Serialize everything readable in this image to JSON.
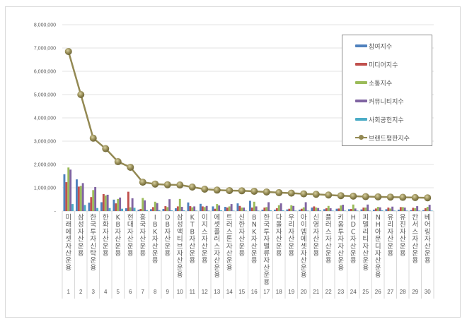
{
  "chart_data": {
    "type": "bar",
    "title": "",
    "xlabel": "",
    "ylabel": "",
    "ylim": [
      0,
      8000000
    ],
    "yticks": [
      "-",
      "1,000,000",
      "2,000,000",
      "3,000,000",
      "4,000,000",
      "5,000,000",
      "6,000,000",
      "7,000,000",
      "8,000,000"
    ],
    "grid": true,
    "legend_position": "upper right",
    "categories": [
      "미래에셋자산운용",
      "삼성자산운용",
      "한국투자신탁운용",
      "한화자산운용",
      "KB자산운용",
      "현대자산운용",
      "흥국자산운용",
      "IBK자산운용",
      "DB자산운용",
      "삼성액티브자산운용",
      "KTB자산운용",
      "이지스자산운용",
      "에셋플러스자산운용",
      "트러스톤자산운용",
      "신한자산운용",
      "BNK자산운용",
      "한국투자밸류자산운용",
      "다올자산운용",
      "우리자산운용",
      "아이엠에셋자산운용",
      "신영자산운용",
      "플러스자산운용",
      "키움투자자산운용",
      "HDC자산운용",
      "피델리티자산운용",
      "NH아문디자산운용",
      "유리자산운용",
      "유진자산운용",
      "칸서스자산운용",
      "베어링자산운용"
    ],
    "ranks": [
      "1",
      "2",
      "3",
      "4",
      "5",
      "6",
      "7",
      "8",
      "9",
      "10",
      "11",
      "12",
      "13",
      "14",
      "15",
      "16",
      "17",
      "18",
      "19",
      "20",
      "21",
      "22",
      "23",
      "24",
      "25",
      "26",
      "27",
      "28",
      "29",
      "30"
    ],
    "series": [
      {
        "name": "참여지수",
        "type": "bar",
        "color": "#4f81bd",
        "values": [
          1580000,
          1360000,
          360000,
          380000,
          490000,
          120000,
          60000,
          80000,
          90000,
          120000,
          370000,
          310000,
          200000,
          180000,
          330000,
          440000,
          60000,
          60000,
          70000,
          60000,
          150000,
          80000,
          100000,
          80000,
          70000,
          60000,
          80000,
          60000,
          40000,
          40000
        ]
      },
      {
        "name": "미디어지수",
        "type": "bar",
        "color": "#c0504d",
        "values": [
          1240000,
          1050000,
          600000,
          730000,
          330000,
          830000,
          90000,
          170000,
          210000,
          200000,
          210000,
          200000,
          100000,
          150000,
          220000,
          150000,
          150000,
          120000,
          100000,
          100000,
          200000,
          120000,
          110000,
          90000,
          150000,
          110000,
          150000,
          170000,
          140000,
          120000
        ]
      },
      {
        "name": "소통지수",
        "type": "bar",
        "color": "#9bbb59",
        "values": [
          1870000,
          1080000,
          900000,
          670000,
          520000,
          160000,
          560000,
          400000,
          170000,
          520000,
          160000,
          170000,
          300000,
          200000,
          150000,
          400000,
          170000,
          250000,
          250000,
          160000,
          150000,
          220000,
          240000,
          280000,
          150000,
          180000,
          110000,
          170000,
          120000,
          180000
        ]
      },
      {
        "name": "커뮤니티지수",
        "type": "bar",
        "color": "#8064a2",
        "values": [
          1780000,
          1200000,
          1030000,
          700000,
          580000,
          550000,
          460000,
          340000,
          510000,
          180000,
          200000,
          220000,
          240000,
          300000,
          150000,
          200000,
          380000,
          330000,
          220000,
          380000,
          130000,
          120000,
          270000,
          110000,
          280000,
          160000,
          190000,
          150000,
          210000,
          270000
        ]
      },
      {
        "name": "사회공헌지수",
        "type": "bar",
        "color": "#4bacc6",
        "values": [
          300000,
          260000,
          130000,
          130000,
          100000,
          140000,
          40000,
          40000,
          30000,
          30000,
          20000,
          20000,
          30000,
          20000,
          20000,
          20000,
          30000,
          30000,
          20000,
          20000,
          30000,
          20000,
          20000,
          20000,
          20000,
          30000,
          20000,
          20000,
          20000,
          20000
        ]
      },
      {
        "name": "브랜드평판지수",
        "type": "line",
        "color": "#938953",
        "values": [
          6850000,
          5000000,
          3130000,
          2680000,
          2120000,
          1880000,
          1240000,
          1160000,
          1130000,
          1120000,
          1030000,
          940000,
          900000,
          880000,
          870000,
          850000,
          820000,
          790000,
          770000,
          740000,
          720000,
          690000,
          660000,
          640000,
          620000,
          610000,
          600000,
          590000,
          580000,
          570000
        ]
      }
    ]
  },
  "legend": {
    "items": [
      {
        "label": "참여지수",
        "color": "#4f81bd",
        "kind": "bar"
      },
      {
        "label": "미디어지수",
        "color": "#c0504d",
        "kind": "bar"
      },
      {
        "label": "소통지수",
        "color": "#9bbb59",
        "kind": "bar"
      },
      {
        "label": "커뮤니티지수",
        "color": "#8064a2",
        "kind": "bar"
      },
      {
        "label": "사회공헌지수",
        "color": "#4bacc6",
        "kind": "bar"
      },
      {
        "label": "브랜드평판지수",
        "color": "#938953",
        "kind": "line"
      }
    ]
  }
}
